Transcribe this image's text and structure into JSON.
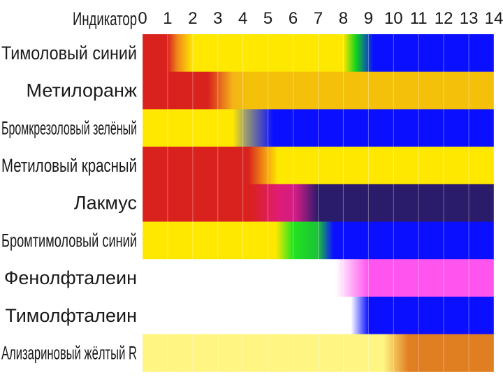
{
  "chart_data": {
    "type": "heatmap",
    "header_label": "Индикатор",
    "x_ticks": [
      "0",
      "1",
      "2",
      "3",
      "4",
      "5",
      "6",
      "7",
      "8",
      "9",
      "10",
      "11",
      "12",
      "13",
      "14"
    ],
    "xlim": [
      0,
      14
    ],
    "rows": [
      {
        "name": "Тимоловый синий",
        "stops": [
          {
            "ph": 0,
            "color": "#d9211e"
          },
          {
            "ph": 1.0,
            "color": "#d9211e"
          },
          {
            "ph": 1.4,
            "color": "#f08a1a"
          },
          {
            "ph": 2.0,
            "color": "#ffe800"
          },
          {
            "ph": 8.0,
            "color": "#ffe800"
          },
          {
            "ph": 8.5,
            "color": "#12d41c"
          },
          {
            "ph": 9.2,
            "color": "#0a10ff"
          },
          {
            "ph": 14,
            "color": "#0a10ff"
          }
        ]
      },
      {
        "name": "Метилоранж",
        "stops": [
          {
            "ph": 0,
            "color": "#d9211e"
          },
          {
            "ph": 2.6,
            "color": "#d9211e"
          },
          {
            "ph": 3.6,
            "color": "#f4b31a"
          },
          {
            "ph": 4.2,
            "color": "#f4c00a"
          },
          {
            "ph": 14,
            "color": "#f4c00a"
          }
        ]
      },
      {
        "name": "Бромкрезоловый зелёный",
        "stops": [
          {
            "ph": 0,
            "color": "#ffe800"
          },
          {
            "ph": 3.6,
            "color": "#ffe800"
          },
          {
            "ph": 4.1,
            "color": "#9c9d6c"
          },
          {
            "ph": 5.2,
            "color": "#0a10ff"
          },
          {
            "ph": 14,
            "color": "#0a10ff"
          }
        ]
      },
      {
        "name": "Метиловый красный",
        "stops": [
          {
            "ph": 0,
            "color": "#d9211e"
          },
          {
            "ph": 4.2,
            "color": "#d9211e"
          },
          {
            "ph": 4.9,
            "color": "#f29a12"
          },
          {
            "ph": 5.4,
            "color": "#ffe800"
          },
          {
            "ph": 14,
            "color": "#ffe800"
          }
        ]
      },
      {
        "name": "Лакмус",
        "stops": [
          {
            "ph": 0,
            "color": "#d9211e"
          },
          {
            "ph": 4.3,
            "color": "#d9211e"
          },
          {
            "ph": 5.4,
            "color": "#e01c74"
          },
          {
            "ph": 6.1,
            "color": "#d01c86"
          },
          {
            "ph": 7.0,
            "color": "#2b1b6b"
          },
          {
            "ph": 14,
            "color": "#2b1b6b"
          }
        ]
      },
      {
        "name": "Бромтимоловый синий",
        "stops": [
          {
            "ph": 0,
            "color": "#ffe800"
          },
          {
            "ph": 5.3,
            "color": "#ffe800"
          },
          {
            "ph": 6.0,
            "color": "#22e41e"
          },
          {
            "ph": 7.0,
            "color": "#1bc23a"
          },
          {
            "ph": 7.6,
            "color": "#0a10ff"
          },
          {
            "ph": 14,
            "color": "#0a10ff"
          }
        ]
      },
      {
        "name": "Фенолфталеин",
        "stops": [
          {
            "ph": 0,
            "color": "#ffffff"
          },
          {
            "ph": 7.7,
            "color": "#ffffff"
          },
          {
            "ph": 9.0,
            "color": "#ff55ee"
          },
          {
            "ph": 14,
            "color": "#ff55ee"
          }
        ]
      },
      {
        "name": "Тимолфталеин",
        "stops": [
          {
            "ph": 0,
            "color": "#ffffff"
          },
          {
            "ph": 8.3,
            "color": "#ffffff"
          },
          {
            "ph": 9.0,
            "color": "#0a10ff"
          },
          {
            "ph": 14,
            "color": "#0a10ff"
          }
        ]
      },
      {
        "name": "Ализариновый жёлтый R",
        "stops": [
          {
            "ph": 0,
            "color": "#fff582"
          },
          {
            "ph": 9.6,
            "color": "#fff582"
          },
          {
            "ph": 10.6,
            "color": "#e07e22"
          },
          {
            "ph": 14,
            "color": "#e07e22"
          }
        ]
      }
    ],
    "grid": true,
    "grid_color": "#ffffff"
  }
}
